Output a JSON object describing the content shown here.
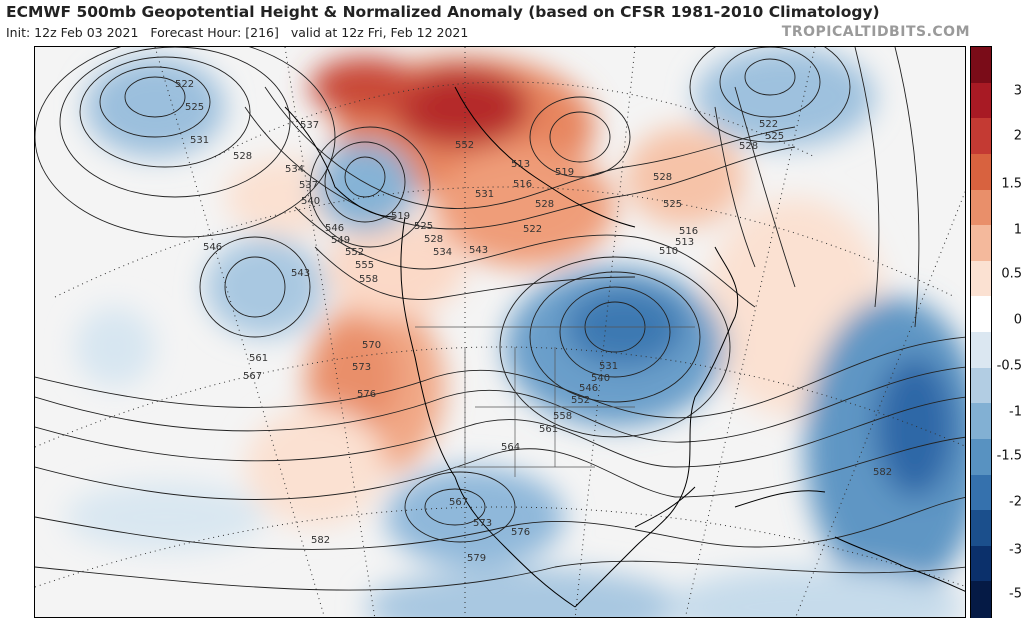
{
  "title": "ECMWF 500mb Geopotential Height & Normalized Anomaly (based on CFSR 1981-2010 Climatology)",
  "subtitle_init": "Init: 12z Feb 03 2021",
  "subtitle_forecast": "Forecast Hour: [216]",
  "subtitle_valid": "valid at 12z Fri, Feb 12 2021",
  "brand": "TROPICALTIDBITS.COM",
  "colorbar": {
    "ticks": [
      "3",
      "2",
      "1.5",
      "1",
      "0.5",
      "0",
      "-0.5",
      "-1",
      "-1.5",
      "-2",
      "-3",
      "-5"
    ],
    "colors": [
      "#7a0c18",
      "#a81a24",
      "#c43a33",
      "#d8623f",
      "#e98f6a",
      "#f4b99c",
      "#fbe1d2",
      "#ffffff",
      "#dbe7f1",
      "#b2cde3",
      "#82b0d3",
      "#5892c1",
      "#3571ad",
      "#1b4f8c",
      "#0b306b",
      "#051a45"
    ]
  },
  "contour_labels": [
    "522",
    "525",
    "531",
    "528",
    "534",
    "537",
    "540",
    "546",
    "543",
    "561",
    "567",
    "537",
    "546",
    "549",
    "552",
    "555",
    "558",
    "519",
    "525",
    "528",
    "534",
    "570",
    "573",
    "576",
    "552",
    "531",
    "543",
    "522",
    "528",
    "513",
    "516",
    "519",
    "528",
    "525",
    "516",
    "513",
    "510",
    "531",
    "540",
    "546",
    "552",
    "558",
    "561",
    "564",
    "567",
    "573",
    "576",
    "579",
    "582",
    "522",
    "525",
    "528",
    "582"
  ]
}
